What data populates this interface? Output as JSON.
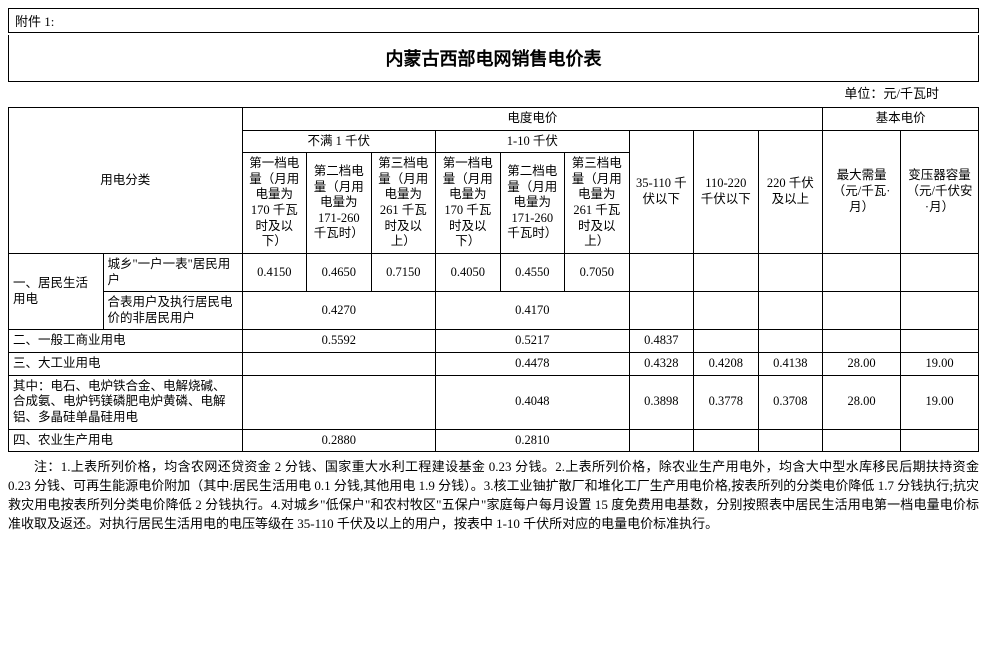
{
  "attachment_label": "附件 1:",
  "title": "内蒙古西部电网销售电价表",
  "unit": "单位：元/千瓦时",
  "headers": {
    "category": "用电分类",
    "energy_price": "电度电价",
    "basic_price": "基本电价",
    "under1kv": "不满 1 千伏",
    "kv1_10": "1-10 千伏",
    "tier1_u": "第一档电量（月用电量为 170 千瓦时及以下）",
    "tier2_u": "第二档电量（月用电量为 171-260 千瓦时）",
    "tier3_u": "第三档电量（月用电量为 261 千瓦时及以上）",
    "tier1_m": "第一档电量（月用电量为 170 千瓦时及以下）",
    "tier2_m": "第二档电量（月用电量为 171-260 千瓦时）",
    "tier3_m": "第三档电量（月用电量为 261 千瓦时及以上）",
    "v35_110": "35-110 千伏以下",
    "v110_220": "110-220 千伏以下",
    "v220": "220 千伏及以上",
    "max_demand": "最大需量（元/千瓦·月）",
    "transformer": "变压器容量（元/千伏安·月）"
  },
  "rows": {
    "r1": {
      "cat": "一、居民生活用电",
      "sub": "城乡\"一户一表\"居民用户",
      "t1u": "0.4150",
      "t2u": "0.4650",
      "t3u": "0.7150",
      "t1m": "0.4050",
      "t2m": "0.4550",
      "t3m": "0.7050"
    },
    "r2": {
      "sub": "合表用户及执行居民电价的非居民用户",
      "u": "0.4270",
      "m": "0.4170"
    },
    "r3": {
      "cat": "二、一般工商业用电",
      "u": "0.5592",
      "m": "0.5217",
      "v35": "0.4837"
    },
    "r4": {
      "cat": "三、大工业用电",
      "m": "0.4478",
      "v35": "0.4328",
      "v110": "0.4208",
      "v220": "0.4138",
      "md": "28.00",
      "tr": "19.00"
    },
    "r5": {
      "cat": "其中：电石、电炉铁合金、电解烧碱、合成氨、电炉钙镁磷肥电炉黄磷、电解铝、多晶硅单晶硅用电",
      "m": "0.4048",
      "v35": "0.3898",
      "v110": "0.3778",
      "v220": "0.3708",
      "md": "28.00",
      "tr": "19.00"
    },
    "r6": {
      "cat": "四、农业生产用电",
      "u": "0.2880",
      "m": "0.2810"
    }
  },
  "notes": "注：1.上表所列价格，均含农网还贷资金 2 分钱、国家重大水利工程建设基金 0.23 分钱。2.上表所列价格，除农业生产用电外，均含大中型水库移民后期扶持资金 0.23 分钱、可再生能源电价附加（其中:居民生活用电 0.1 分钱,其他用电 1.9 分钱）。3.核工业铀扩散厂和堆化工厂生产用电价格,按表所列的分类电价降低 1.7 分钱执行;抗灾救灾用电按表所列分类电价降低 2 分钱执行。4.对城乡\"低保户\"和农村牧区\"五保户\"家庭每户每月设置 15 度免费用电基数，分别按照表中居民生活用电第一档电量电价标准收取及返还。对执行居民生活用电的电压等级在 35-110 千伏及以上的用户，按表中 1-10 千伏所对应的电量电价标准执行。"
}
